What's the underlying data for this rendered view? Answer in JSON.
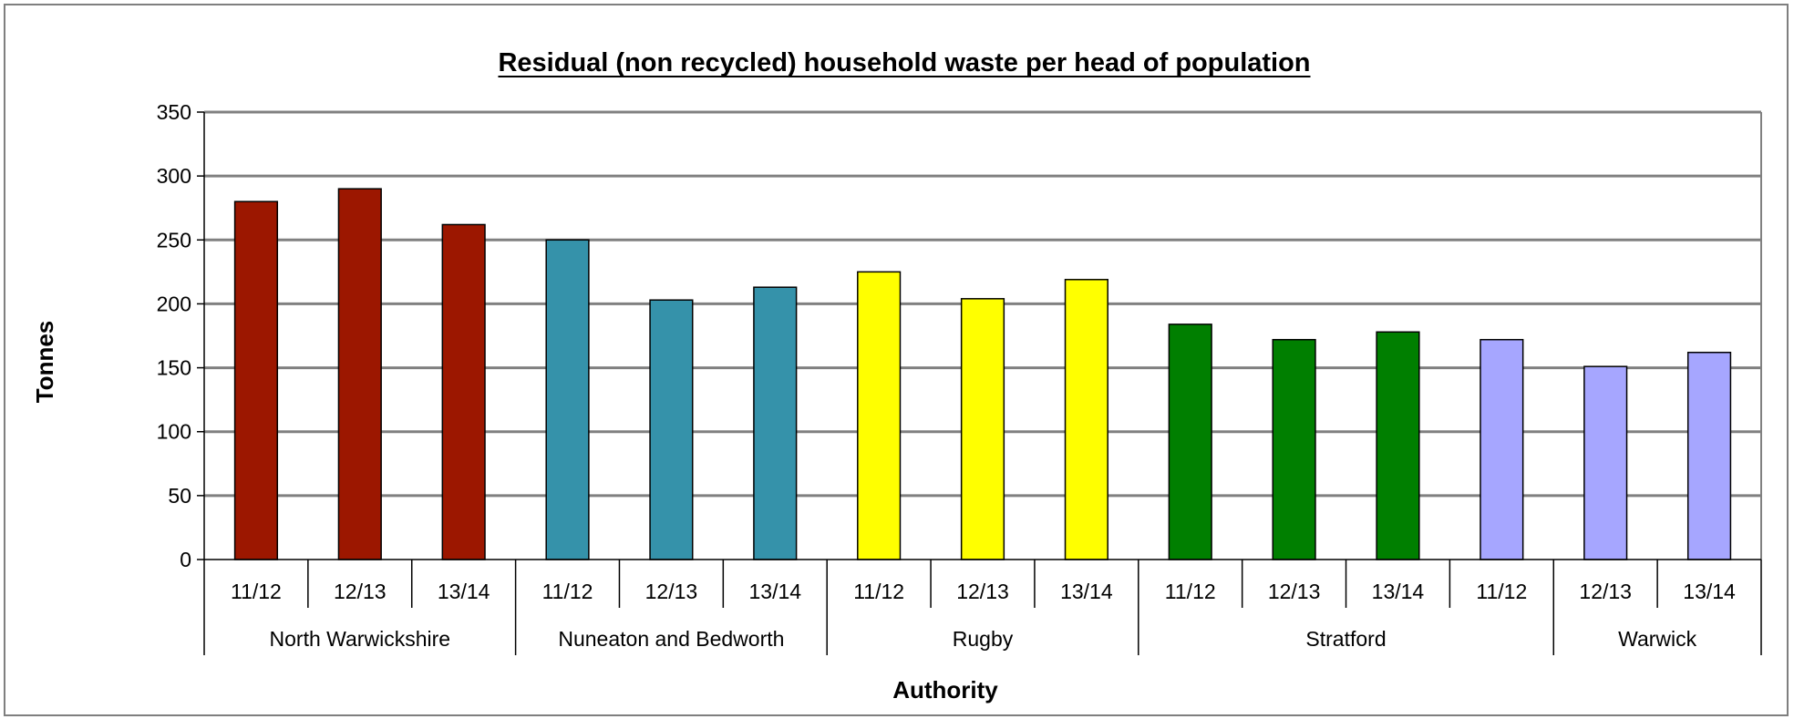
{
  "chart_data": {
    "type": "bar",
    "title": "Residual (non recycled) household waste per head of population",
    "xlabel": "Authority",
    "ylabel": "Tonnes",
    "ylim": [
      0,
      350
    ],
    "yticks": [
      0,
      50,
      100,
      150,
      200,
      250,
      300,
      350
    ],
    "grid": true,
    "groups": [
      {
        "name": "North Warwickshire",
        "color": "#9c1700",
        "periods": [
          "11/12",
          "12/13",
          "13/14"
        ],
        "values": [
          280,
          290,
          262
        ]
      },
      {
        "name": "Nuneaton and Bedworth",
        "color": "#3592aa",
        "periods": [
          "11/12",
          "12/13",
          "13/14"
        ],
        "values": [
          250,
          203,
          213
        ]
      },
      {
        "name": "Rugby",
        "color": "#ffff00",
        "periods": [
          "11/12",
          "12/13",
          "13/14"
        ],
        "values": [
          225,
          204,
          219
        ]
      },
      {
        "name": "Stratford",
        "color": "#007f00",
        "periods": [
          "11/12",
          "12/13",
          "13/14"
        ],
        "values": [
          184,
          172,
          178
        ]
      },
      {
        "name": "Warwick",
        "color": "#a6a6ff",
        "periods": [
          "11/12",
          "12/13",
          "13/14"
        ],
        "values": [
          172,
          151,
          162
        ]
      }
    ]
  }
}
